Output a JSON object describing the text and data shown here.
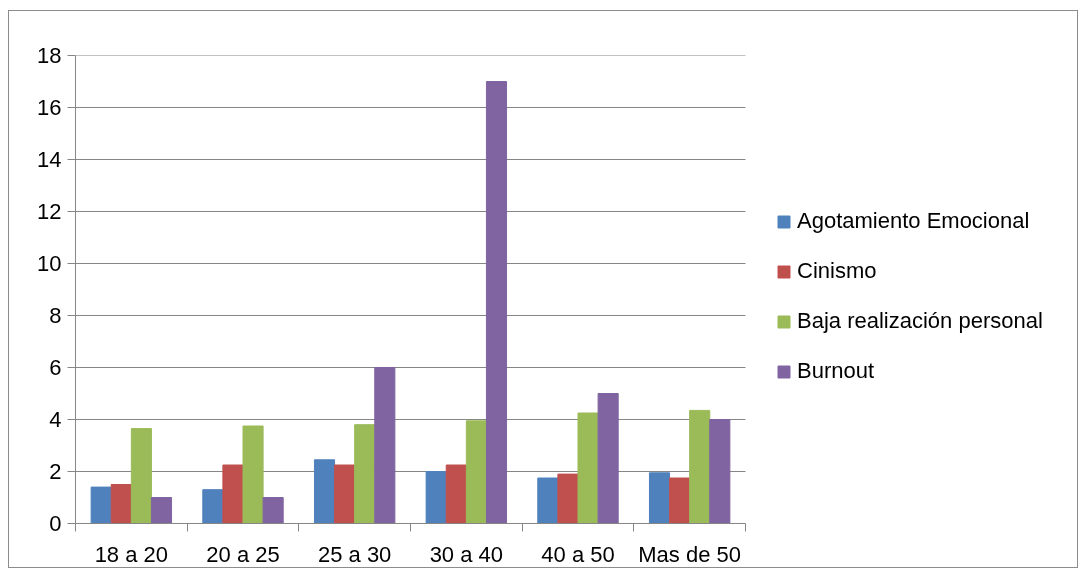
{
  "chart_data": {
    "type": "bar",
    "categories": [
      "18 a 20",
      "20 a 25",
      "25 a 30",
      "30 a 40",
      "40 a 50",
      "Mas de 50"
    ],
    "series": [
      {
        "name": "Agotamiento Emocional",
        "color": "#4f81bd",
        "values": [
          1.4,
          1.3,
          2.45,
          2.0,
          1.75,
          1.95
        ]
      },
      {
        "name": "Cinismo",
        "color": "#c0504d",
        "values": [
          1.5,
          2.25,
          2.25,
          2.25,
          1.9,
          1.75
        ]
      },
      {
        "name": "Baja realización personal",
        "color": "#9bbb59",
        "values": [
          3.65,
          3.75,
          3.8,
          3.95,
          4.25,
          4.35
        ]
      },
      {
        "name": "Burnout",
        "color": "#8064a2",
        "values": [
          1,
          1,
          6,
          17,
          5,
          4
        ]
      }
    ],
    "ylim": [
      0,
      18
    ],
    "yticks": [
      0,
      2,
      4,
      6,
      8,
      10,
      12,
      14,
      16,
      18
    ],
    "grid": "y",
    "legend": "right"
  }
}
